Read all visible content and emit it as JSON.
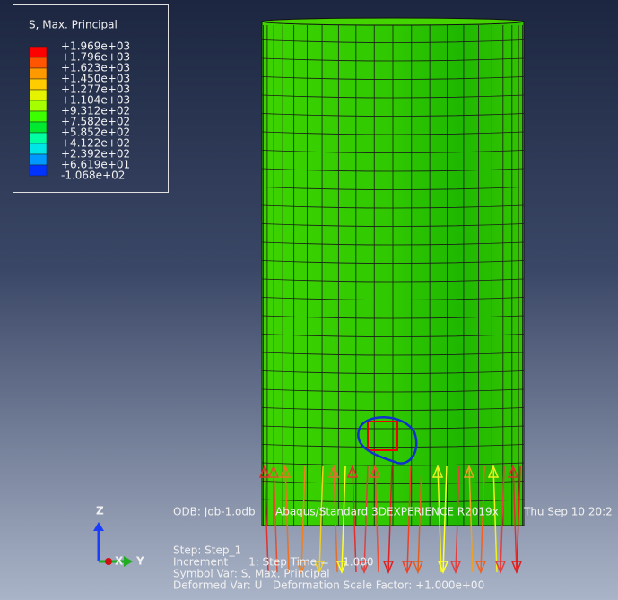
{
  "legend": {
    "title": "S, Max. Principal",
    "labels": [
      "+1.969e+03",
      "+1.796e+03",
      "+1.623e+03",
      "+1.450e+03",
      "+1.277e+03",
      "+1.104e+03",
      "+9.312e+02",
      "+7.582e+02",
      "+5.852e+02",
      "+4.122e+02",
      "+2.392e+02",
      "+6.619e+01",
      "-1.068e+02"
    ],
    "colors": [
      "#ff0000",
      "#ff5500",
      "#ff9900",
      "#ffcc00",
      "#e5f200",
      "#a6ff00",
      "#3cff00",
      "#00e830",
      "#00ffa0",
      "#00e5e5",
      "#0099ff",
      "#0033ff"
    ]
  },
  "info": {
    "odb": "ODB: Job-1.odb",
    "solver": "Abaqus/Standard 3DEXPERIENCE R2019x",
    "date": "Thu Sep 10 20:2",
    "step": "Step: Step_1",
    "increment": "Increment      1: Step Time =    1.000",
    "symbol_var": "Symbol Var: S, Max. Principal",
    "deformed_var": "Deformed Var: U   Deformation Scale Factor: +1.000e+00"
  },
  "triad": {
    "z": "Z",
    "x": "X",
    "y": "Y"
  }
}
